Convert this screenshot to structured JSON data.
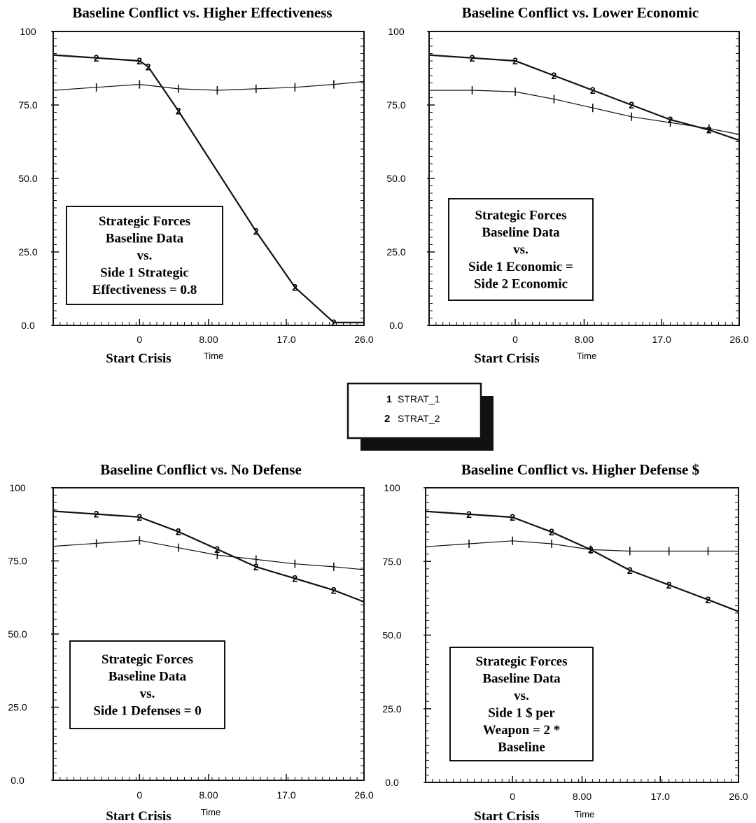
{
  "legend": {
    "items": [
      {
        "marker": "1",
        "label": "STRAT_1"
      },
      {
        "marker": "2",
        "label": "STRAT_2"
      }
    ]
  },
  "chart_data": [
    {
      "type": "line",
      "title": "Baseline Conflict vs. Higher Effectiveness",
      "xlabel": "Time",
      "x_caption": "Start Crisis",
      "xlim": [
        -10,
        26
      ],
      "ylim": [
        0,
        100
      ],
      "x_ticks": [
        "0",
        "8.00",
        "17.0",
        "26.0"
      ],
      "y_ticks": [
        "0.0",
        "25.0",
        "50.0",
        "75.0",
        "100"
      ],
      "annotation": [
        "Strategic  Forces",
        "Baseline Data",
        "vs.",
        "Side 1 Strategic",
        "Effectiveness = 0.8"
      ],
      "series": [
        {
          "name": "STRAT_1",
          "marker": "1",
          "x": [
            -10,
            -5,
            0,
            4.5,
            9,
            13.5,
            18,
            22.5,
            26
          ],
          "y": [
            80,
            81,
            82,
            80.5,
            80,
            80.5,
            81,
            82,
            83
          ]
        },
        {
          "name": "STRAT_2",
          "marker": "2",
          "x": [
            -10,
            -5,
            0,
            1,
            4.5,
            13.5,
            18,
            22.5,
            26
          ],
          "y": [
            92,
            91,
            90,
            88,
            73,
            32,
            13,
            1,
            1
          ]
        }
      ]
    },
    {
      "type": "line",
      "title": "Baseline Conflict vs. Lower Economic",
      "xlabel": "Time",
      "x_caption": "Start Crisis",
      "xlim": [
        -10,
        26
      ],
      "ylim": [
        0,
        100
      ],
      "x_ticks": [
        "0",
        "8.00",
        "17.0",
        "26.0"
      ],
      "y_ticks": [
        "0.0",
        "25.0",
        "50.0",
        "75.0",
        "100"
      ],
      "annotation": [
        "Strategic  Forces",
        "Baseline Data",
        "vs.",
        "Side 1 Economic =",
        "Side 2 Economic"
      ],
      "series": [
        {
          "name": "STRAT_1",
          "marker": "1",
          "x": [
            -10,
            -5,
            0,
            4.5,
            9,
            13.5,
            18,
            22.5,
            26
          ],
          "y": [
            80,
            80,
            79.5,
            77,
            74,
            71,
            69,
            67,
            65
          ]
        },
        {
          "name": "STRAT_2",
          "marker": "2",
          "x": [
            -10,
            -5,
            0,
            4.5,
            9,
            13.5,
            18,
            22.5,
            26
          ],
          "y": [
            92,
            91,
            90,
            85,
            80,
            75,
            70,
            66.5,
            63
          ]
        }
      ]
    },
    {
      "type": "line",
      "title": "Baseline Conflict vs. No Defense",
      "xlabel": "Time",
      "x_caption": "Start Crisis",
      "xlim": [
        -10,
        26
      ],
      "ylim": [
        0,
        100
      ],
      "x_ticks": [
        "0",
        "8.00",
        "17.0",
        "26.0"
      ],
      "y_ticks": [
        "0.0",
        "25.0",
        "50.0",
        "75.0",
        "100"
      ],
      "annotation": [
        "Strategic  Forces",
        "Baseline Data",
        "vs.",
        "Side 1 Defenses = 0"
      ],
      "series": [
        {
          "name": "STRAT_1",
          "marker": "1",
          "x": [
            -10,
            -5,
            0,
            4.5,
            9,
            13.5,
            18,
            22.5,
            26
          ],
          "y": [
            80,
            81,
            82,
            79.5,
            77,
            75.5,
            74,
            73,
            72
          ]
        },
        {
          "name": "STRAT_2",
          "marker": "2",
          "x": [
            -10,
            -5,
            0,
            4.5,
            9,
            13.5,
            18,
            22.5,
            26
          ],
          "y": [
            92,
            91,
            90,
            85,
            79,
            73,
            69,
            65,
            61
          ]
        }
      ]
    },
    {
      "type": "line",
      "title": "Baseline Conflict vs. Higher Defense $",
      "xlabel": "Time",
      "x_caption": "Start Crisis",
      "xlim": [
        -10,
        26
      ],
      "ylim": [
        0,
        100
      ],
      "x_ticks": [
        "0",
        "8.00",
        "17.0",
        "26.0"
      ],
      "y_ticks": [
        "0.0",
        "25.0",
        "50.0",
        "75.0",
        "100"
      ],
      "annotation": [
        "Strategic  Forces",
        "Baseline Data",
        "vs.",
        "Side 1 $ per",
        "Weapon = 2 *",
        "Baseline"
      ],
      "series": [
        {
          "name": "STRAT_1",
          "marker": "1",
          "x": [
            -10,
            -5,
            0,
            4.5,
            9,
            13.5,
            18,
            22.5,
            26
          ],
          "y": [
            80,
            81,
            82,
            81,
            79,
            78.5,
            78.5,
            78.5,
            78.5
          ]
        },
        {
          "name": "STRAT_2",
          "marker": "2",
          "x": [
            -10,
            -5,
            0,
            4.5,
            9,
            13.5,
            18,
            22.5,
            26
          ],
          "y": [
            92,
            91,
            90,
            85,
            79,
            72,
            67,
            62,
            58
          ]
        }
      ]
    }
  ]
}
